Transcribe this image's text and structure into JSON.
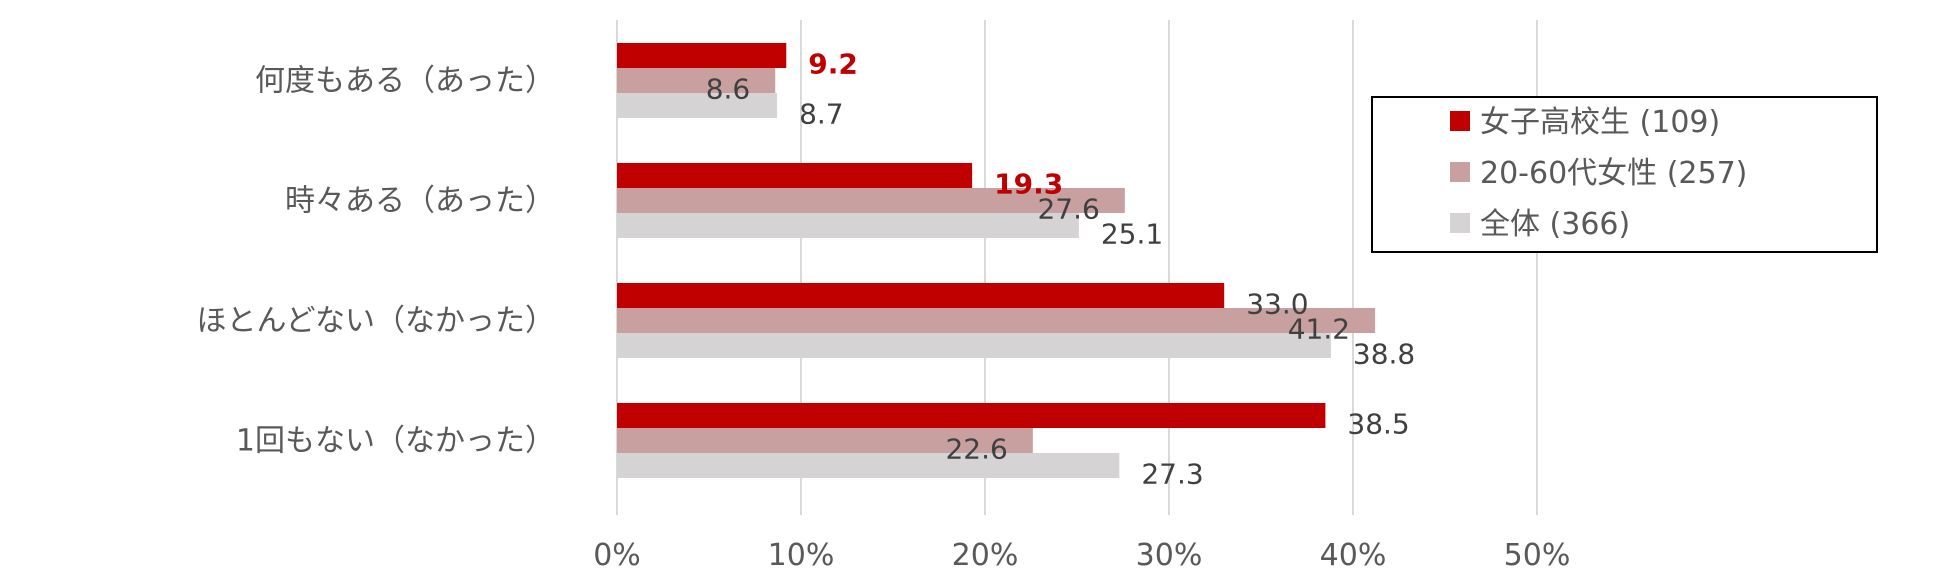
{
  "chart_data": {
    "type": "bar",
    "orientation": "horizontal",
    "categories": [
      "何度もある（あった）",
      "時々ある（あった）",
      "ほとんどない（なかった）",
      "1回もない（なかった）"
    ],
    "series": [
      {
        "name": "女子高校生 (109)",
        "values": [
          9.2,
          19.3,
          33.0,
          38.5
        ],
        "color": "#C00000",
        "emphasized_labels": [
          true,
          true,
          false,
          false
        ]
      },
      {
        "name": "20-60代女性 (257)",
        "values": [
          8.6,
          27.6,
          41.2,
          22.6
        ],
        "color": "#C9A0A0",
        "emphasized_labels": [
          false,
          false,
          false,
          false
        ]
      },
      {
        "name": "全体 (366)",
        "values": [
          8.7,
          25.1,
          38.8,
          27.3
        ],
        "color": "#D5D3D3",
        "emphasized_labels": [
          false,
          false,
          false,
          false
        ]
      }
    ],
    "value_labels": [
      [
        "9.2",
        "19.3",
        "33.0",
        "38.5"
      ],
      [
        "8.6",
        "27.6",
        "41.2",
        "22.6"
      ],
      [
        "8.7",
        "25.1",
        "38.8",
        "27.3"
      ]
    ],
    "x_ticks": [
      "0%",
      "10%",
      "20%",
      "30%",
      "40%",
      "50%"
    ],
    "xlim": [
      0,
      50
    ],
    "grid": true,
    "legend_position": "right"
  }
}
